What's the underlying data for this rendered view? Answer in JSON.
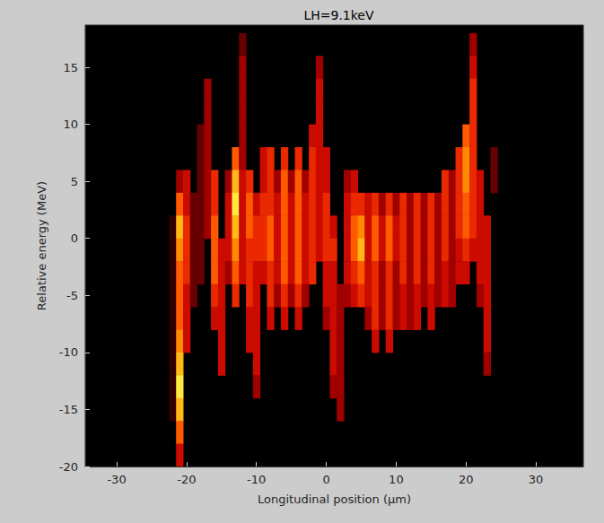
{
  "chart_data": {
    "type": "heatmap",
    "title": "LH=9.1keV",
    "x_label": "Longitudinal position (µm)",
    "y_label": "Relative energy (MeV)",
    "xlim": [
      -34.5,
      36.8
    ],
    "xticks": [
      -30,
      -20,
      -10,
      0,
      10,
      20,
      30
    ],
    "ylim": [
      -20,
      18.7
    ],
    "yticks": [
      -20,
      -15,
      -10,
      -5,
      0,
      5,
      10,
      15
    ],
    "colors": [
      "#000000",
      "#4a0000",
      "#a00000",
      "#e01000",
      "#ff5a00",
      "#ffa000",
      "#ffe840"
    ],
    "cells": {
      "x": [
        -22,
        -21,
        -20,
        -19,
        -18,
        -17,
        -16,
        -15,
        -14,
        -13,
        -12,
        -11,
        -10,
        -9,
        -8,
        -7,
        -6,
        -5,
        -4,
        -3,
        -2,
        -1,
        0,
        1,
        2,
        3,
        4,
        5,
        6,
        7,
        8,
        9,
        10,
        11,
        12,
        13,
        14,
        15,
        16,
        17,
        18,
        19,
        20,
        21,
        22,
        23,
        24
      ],
      "y": [
        17,
        15,
        13,
        11,
        9,
        7,
        5,
        3,
        1,
        -1,
        -3,
        -5,
        -7,
        -9,
        -11,
        -13,
        -15,
        -17,
        -19
      ],
      "values": [
        [
          0,
          0,
          0,
          0,
          0,
          0,
          0,
          0,
          0,
          0,
          2,
          0,
          0,
          0,
          0,
          0,
          0,
          0,
          0,
          0,
          0,
          0,
          0,
          0,
          0,
          0,
          0,
          0,
          0,
          0,
          0,
          0,
          0,
          0,
          0,
          0,
          0,
          0,
          0,
          0,
          0,
          0,
          0,
          3,
          0,
          0,
          0
        ],
        [
          0,
          0,
          0,
          0,
          0,
          0,
          0,
          0,
          0,
          0,
          3,
          0,
          0,
          0,
          0,
          0,
          0,
          0,
          0,
          0,
          0,
          3,
          0,
          0,
          0,
          0,
          0,
          0,
          0,
          0,
          0,
          0,
          0,
          0,
          0,
          0,
          0,
          0,
          0,
          0,
          0,
          0,
          0,
          4,
          0,
          0,
          0
        ],
        [
          0,
          0,
          0,
          0,
          0,
          3,
          0,
          0,
          0,
          0,
          3,
          0,
          0,
          0,
          0,
          0,
          0,
          0,
          0,
          0,
          0,
          4,
          0,
          0,
          0,
          0,
          0,
          0,
          0,
          0,
          0,
          0,
          0,
          0,
          0,
          0,
          0,
          0,
          0,
          0,
          0,
          0,
          0,
          5,
          0,
          0,
          0
        ],
        [
          0,
          0,
          0,
          0,
          0,
          3,
          0,
          0,
          0,
          0,
          3,
          0,
          0,
          0,
          0,
          0,
          0,
          0,
          0,
          0,
          0,
          4,
          0,
          0,
          0,
          0,
          0,
          0,
          0,
          0,
          0,
          0,
          0,
          0,
          0,
          0,
          0,
          0,
          0,
          0,
          0,
          0,
          0,
          5,
          0,
          0,
          0
        ],
        [
          0,
          0,
          0,
          0,
          2,
          3,
          0,
          0,
          0,
          0,
          3,
          0,
          0,
          0,
          0,
          0,
          0,
          0,
          0,
          0,
          4,
          4,
          0,
          0,
          0,
          0,
          0,
          0,
          0,
          0,
          0,
          0,
          0,
          0,
          0,
          0,
          0,
          0,
          0,
          0,
          0,
          0,
          6,
          5,
          0,
          0,
          0
        ],
        [
          0,
          0,
          0,
          0,
          2,
          3,
          0,
          0,
          0,
          6,
          3,
          0,
          0,
          4,
          5,
          0,
          5,
          0,
          5,
          0,
          5,
          4,
          4,
          0,
          0,
          0,
          0,
          0,
          0,
          0,
          0,
          0,
          0,
          0,
          0,
          0,
          0,
          0,
          0,
          0,
          0,
          5,
          7,
          5,
          0,
          0,
          2
        ],
        [
          0,
          3,
          4,
          0,
          2,
          3,
          5,
          0,
          3,
          8,
          4,
          5,
          0,
          4,
          5,
          3,
          6,
          3,
          6,
          3,
          5,
          4,
          4,
          0,
          0,
          3,
          4,
          0,
          0,
          0,
          0,
          0,
          0,
          0,
          0,
          0,
          0,
          0,
          0,
          5,
          3,
          5,
          7,
          5,
          4,
          0,
          2
        ],
        [
          0,
          6,
          4,
          2,
          2,
          3,
          5,
          0,
          4,
          9,
          4,
          6,
          4,
          5,
          5,
          4,
          6,
          4,
          6,
          4,
          5,
          4,
          5,
          0,
          0,
          4,
          5,
          5,
          4,
          5,
          3,
          5,
          3,
          5,
          3,
          5,
          3,
          5,
          3,
          5,
          3,
          5,
          6,
          5,
          4,
          0,
          0
        ],
        [
          1,
          8,
          5,
          2,
          2,
          3,
          6,
          0,
          4,
          8,
          4,
          6,
          5,
          5,
          6,
          4,
          6,
          4,
          6,
          4,
          5,
          4,
          5,
          4,
          0,
          4,
          6,
          7,
          4,
          6,
          4,
          6,
          4,
          5,
          3,
          5,
          3,
          5,
          3,
          5,
          3,
          5,
          6,
          5,
          4,
          4,
          0
        ],
        [
          1,
          7,
          5,
          2,
          2,
          0,
          6,
          4,
          4,
          7,
          4,
          5,
          5,
          5,
          6,
          4,
          6,
          4,
          6,
          4,
          5,
          4,
          5,
          5,
          0,
          4,
          6,
          8,
          4,
          6,
          4,
          6,
          4,
          5,
          3,
          5,
          3,
          5,
          3,
          5,
          3,
          4,
          5,
          4,
          4,
          4,
          0
        ],
        [
          1,
          6,
          5,
          2,
          2,
          0,
          6,
          4,
          3,
          6,
          4,
          5,
          4,
          4,
          5,
          4,
          6,
          4,
          6,
          4,
          5,
          0,
          4,
          4,
          0,
          4,
          5,
          6,
          4,
          5,
          3,
          5,
          3,
          5,
          3,
          5,
          3,
          5,
          3,
          4,
          3,
          4,
          4,
          0,
          4,
          4,
          0
        ],
        [
          1,
          6,
          4,
          2,
          0,
          0,
          5,
          4,
          0,
          5,
          0,
          5,
          4,
          0,
          5,
          3,
          5,
          3,
          5,
          3,
          0,
          0,
          4,
          4,
          3,
          3,
          4,
          5,
          4,
          5,
          3,
          5,
          3,
          4,
          3,
          4,
          3,
          4,
          3,
          4,
          3,
          0,
          0,
          0,
          3,
          4,
          0
        ],
        [
          1,
          6,
          4,
          0,
          0,
          0,
          4,
          4,
          0,
          0,
          0,
          4,
          4,
          0,
          4,
          0,
          4,
          0,
          4,
          0,
          0,
          0,
          3,
          4,
          3,
          0,
          0,
          0,
          3,
          5,
          3,
          5,
          3,
          4,
          3,
          4,
          0,
          4,
          0,
          0,
          0,
          0,
          0,
          0,
          0,
          4,
          0
        ],
        [
          1,
          7,
          4,
          0,
          0,
          0,
          0,
          4,
          0,
          0,
          0,
          4,
          4,
          0,
          0,
          0,
          0,
          0,
          0,
          0,
          0,
          0,
          0,
          4,
          3,
          0,
          0,
          0,
          0,
          4,
          0,
          4,
          0,
          0,
          0,
          0,
          0,
          0,
          0,
          0,
          0,
          0,
          0,
          0,
          0,
          4,
          0
        ],
        [
          1,
          8,
          0,
          0,
          0,
          0,
          0,
          4,
          0,
          0,
          0,
          0,
          4,
          0,
          0,
          0,
          0,
          0,
          0,
          0,
          0,
          0,
          0,
          4,
          3,
          0,
          0,
          0,
          0,
          0,
          0,
          0,
          0,
          0,
          0,
          0,
          0,
          0,
          0,
          0,
          0,
          0,
          0,
          0,
          0,
          3,
          0
        ],
        [
          1,
          9,
          0,
          0,
          0,
          0,
          0,
          0,
          0,
          0,
          0,
          0,
          3,
          0,
          0,
          0,
          0,
          0,
          0,
          0,
          0,
          0,
          0,
          3,
          3,
          0,
          0,
          0,
          0,
          0,
          0,
          0,
          0,
          0,
          0,
          0,
          0,
          0,
          0,
          0,
          0,
          0,
          0,
          0,
          0,
          0,
          0
        ],
        [
          1,
          8,
          0,
          0,
          0,
          0,
          0,
          0,
          0,
          0,
          0,
          0,
          0,
          0,
          0,
          0,
          0,
          0,
          0,
          0,
          0,
          0,
          0,
          0,
          3,
          0,
          0,
          0,
          0,
          0,
          0,
          0,
          0,
          0,
          0,
          0,
          0,
          0,
          0,
          0,
          0,
          0,
          0,
          0,
          0,
          0,
          0
        ],
        [
          0,
          6,
          0,
          0,
          0,
          0,
          0,
          0,
          0,
          0,
          0,
          0,
          0,
          0,
          0,
          0,
          0,
          0,
          0,
          0,
          0,
          0,
          0,
          0,
          0,
          0,
          0,
          0,
          0,
          0,
          0,
          0,
          0,
          0,
          0,
          0,
          0,
          0,
          0,
          0,
          0,
          0,
          0,
          0,
          0,
          0,
          0
        ],
        [
          0,
          4,
          0,
          0,
          0,
          0,
          0,
          0,
          0,
          0,
          0,
          0,
          0,
          0,
          0,
          0,
          0,
          0,
          0,
          0,
          0,
          0,
          0,
          0,
          0,
          0,
          0,
          0,
          0,
          0,
          0,
          0,
          0,
          0,
          0,
          0,
          0,
          0,
          0,
          0,
          0,
          0,
          0,
          0,
          0,
          0,
          0
        ]
      ]
    }
  }
}
